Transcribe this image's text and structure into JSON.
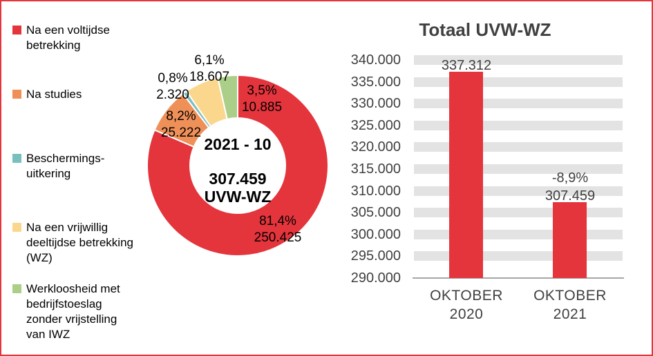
{
  "page": {
    "border_color": "#E4343C",
    "background_color": "#FFFFFF"
  },
  "colors": {
    "red": "#E4343C",
    "orange": "#EF9059",
    "teal": "#79BFBE",
    "yellow": "#FBD78E",
    "green": "#ABCE89",
    "grid_band": "#E3E3E3",
    "axis_line": "#A6A6A6",
    "bar_text": "#404040",
    "black_text": "#000000"
  },
  "legend": {
    "items": [
      {
        "label": "Na een voltijdse\nbetrekking",
        "color": "#E4343C"
      },
      {
        "label": "Na studies",
        "color": "#EF9059"
      },
      {
        "label": "Beschermings-\nuitkering",
        "color": "#79BFBE"
      },
      {
        "label": "Na een vrijwillig\ndeeltijdse betrekking\n(WZ)",
        "color": "#FBD78E"
      },
      {
        "label": "Werkloosheid met\nbedrijfstoeslag\nzonder vrijstelling\nvan IWZ",
        "color": "#ABCE89"
      }
    ]
  },
  "chart_data": [
    {
      "type": "pie",
      "subtype": "doughnut",
      "direction": "clockwise",
      "start_angle_deg": 0,
      "total_value": 307459,
      "center": {
        "period": "2021 - 10",
        "total": "307.459\nUVW-WZ"
      },
      "slices": [
        {
          "name": "Na een voltijdse betrekking",
          "value": 250425,
          "pct_label": "81,4%",
          "value_label": "250.425",
          "color": "#E4343C"
        },
        {
          "name": "Na studies",
          "value": 25222,
          "pct_label": "8,2%",
          "value_label": "25.222",
          "color": "#EF9059"
        },
        {
          "name": "Beschermings-uitkering",
          "value": 2320,
          "pct_label": "0,8%",
          "value_label": "2.320",
          "color": "#79BFBE"
        },
        {
          "name": "Na een vrijwillig deeltijdse betrekking (WZ)",
          "value": 18607,
          "pct_label": "6,1%",
          "value_label": "18.607",
          "color": "#FBD78E"
        },
        {
          "name": "Werkloosheid met bedrijfstoeslag zonder vrijstelling van IWZ",
          "value": 10885,
          "pct_label": "3,5%",
          "value_label": "10.885",
          "color": "#ABCE89"
        }
      ]
    },
    {
      "type": "bar",
      "title": "Totaal UVW-WZ",
      "categories": [
        "OKTOBER\n2020",
        "OKTOBER\n2021"
      ],
      "values": [
        337312,
        307459
      ],
      "bar_labels": [
        "337.312",
        "-8,9%\n307.459"
      ],
      "ylim": [
        290000,
        340000
      ],
      "ytick_step": 5000,
      "ytick_labels": [
        "340.000",
        "335.000",
        "330.000",
        "325.000",
        "320.000",
        "315.000",
        "310.000",
        "305.000",
        "300.000",
        "295.000",
        "290.000"
      ],
      "bar_color": "#E4343C",
      "grid": "horizontal-bands",
      "grid_band_color": "#E3E3E3",
      "axis_line_color": "#A6A6A6",
      "legend_position": "none"
    }
  ]
}
